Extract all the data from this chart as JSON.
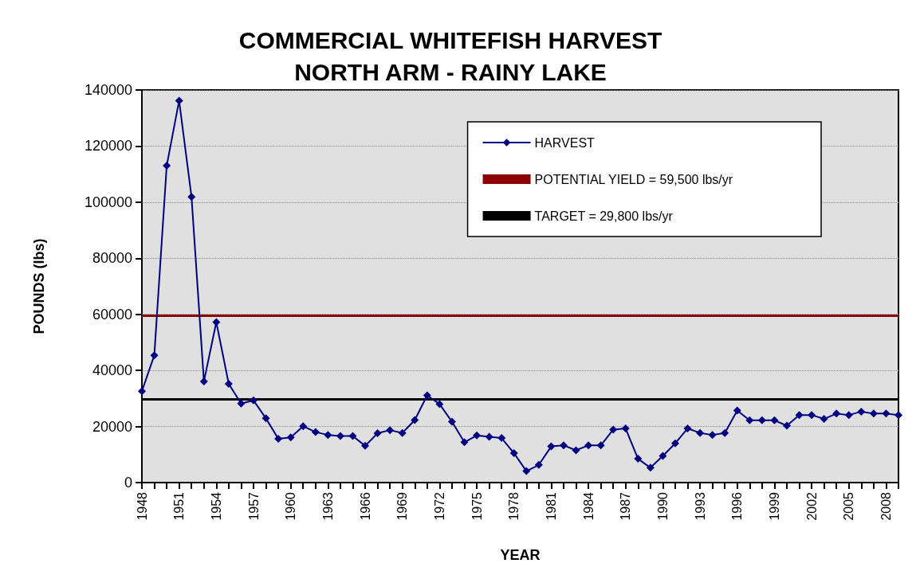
{
  "chart_data": {
    "type": "line",
    "title": "COMMERCIAL WHITEFISH HARVEST\nNORTH ARM - RAINY LAKE",
    "xlabel": "YEAR",
    "ylabel": "POUNDS (lbs)",
    "categories": [
      "1948",
      null,
      null,
      "1951",
      null,
      null,
      "1954",
      null,
      null,
      "1957",
      null,
      null,
      "1960",
      null,
      null,
      "1963",
      null,
      null,
      "1966",
      null,
      null,
      "1969",
      null,
      null,
      "1972",
      null,
      null,
      "1975",
      null,
      null,
      "1978",
      null,
      null,
      "1981",
      null,
      null,
      "1984",
      null,
      null,
      "1987",
      null,
      null,
      "1990",
      null,
      null,
      "1993",
      null,
      null,
      "1996",
      null,
      null,
      "1999",
      null,
      null,
      "2002",
      null,
      null,
      "2005",
      null,
      null,
      "2008",
      null
    ],
    "series": [
      {
        "name": "HARVEST",
        "color": "#000080",
        "values": [
          32600,
          45400,
          113000,
          136200,
          101900,
          36100,
          57200,
          35200,
          28200,
          29300,
          22900,
          15600,
          16100,
          20100,
          18000,
          17000,
          16600,
          16600,
          13100,
          17600,
          18700,
          17700,
          22300,
          31100,
          28000,
          21700,
          14400,
          16800,
          16300,
          15900,
          10500,
          4100,
          6300,
          12900,
          13300,
          11500,
          13300,
          13300,
          18900,
          19300,
          8500,
          5300,
          9500,
          14000,
          19300,
          17700,
          17000,
          17700,
          25700,
          22200,
          22200,
          22200,
          20300,
          24100,
          24100,
          22700,
          24600,
          24100,
          25300,
          24600,
          24600,
          24100
        ]
      }
    ],
    "ref_lines": [
      {
        "axis": "y",
        "value": 59500,
        "label": "POTENTIAL YIELD = 59,500 lbs/yr",
        "color": "#8b0000"
      },
      {
        "axis": "y",
        "value": 29800,
        "label": "TARGET = 29,800 lbs/yr",
        "color": "#000000"
      }
    ],
    "ylim": [
      0,
      140000
    ],
    "yticks": [
      0,
      20000,
      40000,
      60000,
      80000,
      100000,
      120000,
      140000
    ],
    "grid": "y",
    "legend": "top right",
    "marker": "diamond",
    "line_style": "solid"
  }
}
